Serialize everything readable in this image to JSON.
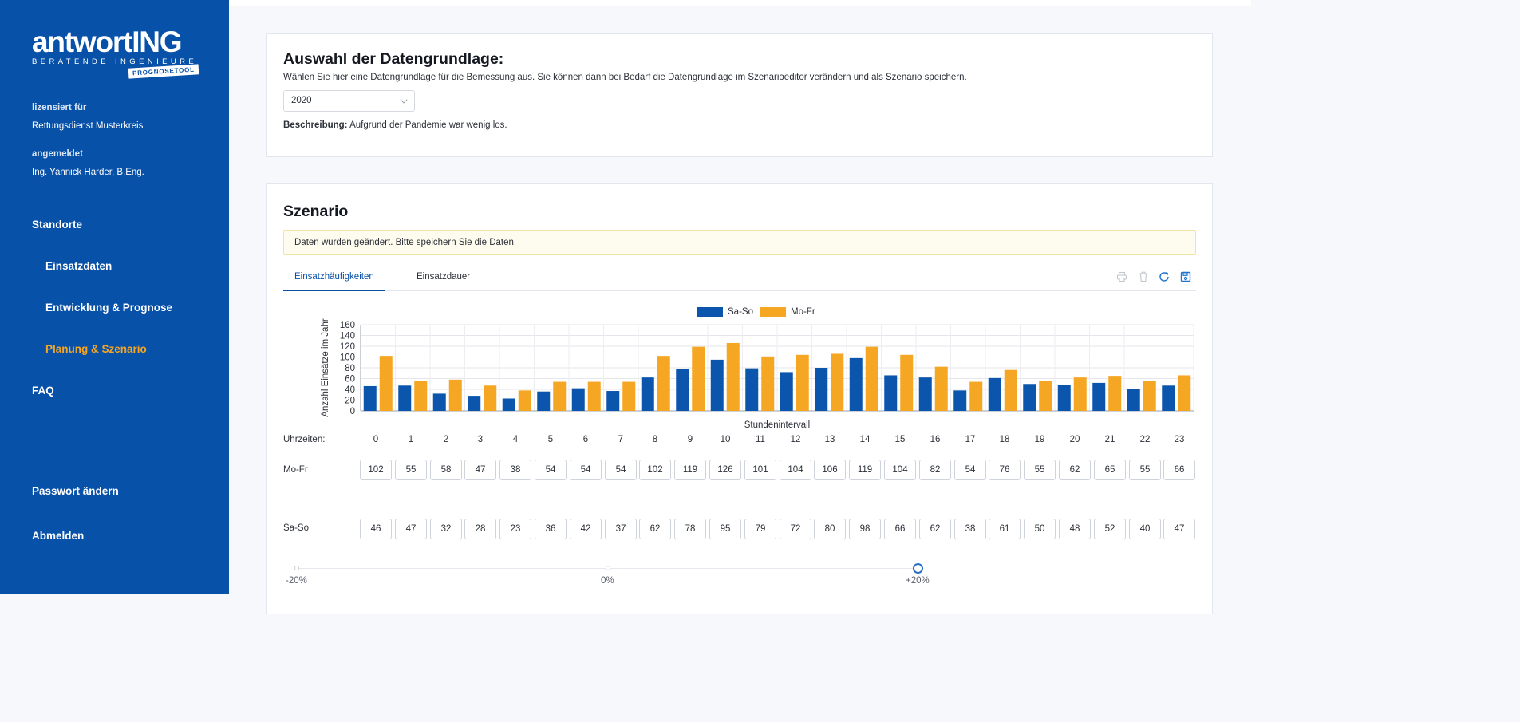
{
  "sidebar": {
    "logo_main": "antwortING",
    "logo_sub": "BERATENDE INGENIEURE",
    "logo_badge": "PROGNOSETOOL",
    "licensed_label": "lizensiert für",
    "licensed_value": "Rettungsdienst Musterkreis",
    "logged_in_label": "angemeldet",
    "logged_in_value": "Ing. Yannick Harder, B.Eng.",
    "nav": {
      "standorte": "Standorte",
      "einsatzdaten": "Einsatzdaten",
      "entwicklung": "Entwicklung & Prognose",
      "planung": "Planung & Szenario",
      "faq": "FAQ",
      "passwort": "Passwort ändern",
      "abmelden": "Abmelden"
    }
  },
  "datengrundlage": {
    "title": "Auswahl der Datengrundlage:",
    "description": "Wählen Sie hier eine Datengrundlage für die Bemessung aus. Sie können dann bei Bedarf die Datengrundlage im Szenarioeditor verändern und als Szenario speichern.",
    "selected": "2020",
    "beschreibung_label": "Beschreibung:",
    "beschreibung_value": "Aufgrund der Pandemie war wenig los."
  },
  "szenario": {
    "title": "Szenario",
    "alert": "Daten wurden geändert. Bitte speichern Sie die Daten.",
    "tabs": [
      "Einsatzhäufigkeiten",
      "Einsatzdauer"
    ],
    "hours_label": "Uhrzeiten:",
    "mofr_label": "Mo-Fr",
    "saso_label": "Sa-So",
    "slider": {
      "min_label": "-20%",
      "mid_label": "0%",
      "max_label": "+20%",
      "value_percent": 20
    }
  },
  "colors": {
    "saso": "#0b55ad",
    "mofr": "#f5a623",
    "sidebar": "#0851a8",
    "active": "#f6a623"
  },
  "chart_data": {
    "type": "bar",
    "xlabel": "Stundenintervall",
    "ylabel": "Anzahl Einsätze im Jahr",
    "ylim": [
      0,
      160
    ],
    "yticks": [
      0,
      20,
      40,
      60,
      80,
      100,
      120,
      140,
      160
    ],
    "legend_position": "top-center",
    "categories": [
      "0",
      "1",
      "2",
      "3",
      "4",
      "5",
      "6",
      "7",
      "8",
      "9",
      "10",
      "11",
      "12",
      "13",
      "14",
      "15",
      "16",
      "17",
      "18",
      "19",
      "20",
      "21",
      "22",
      "23"
    ],
    "series": [
      {
        "name": "Sa-So",
        "values": [
          46,
          47,
          32,
          28,
          23,
          36,
          42,
          37,
          62,
          78,
          95,
          79,
          72,
          80,
          98,
          66,
          62,
          38,
          61,
          50,
          48,
          52,
          40,
          47
        ]
      },
      {
        "name": "Mo-Fr",
        "values": [
          102,
          55,
          58,
          47,
          38,
          54,
          54,
          54,
          102,
          119,
          126,
          101,
          104,
          106,
          119,
          104,
          82,
          54,
          76,
          55,
          62,
          65,
          55,
          66
        ]
      }
    ]
  }
}
